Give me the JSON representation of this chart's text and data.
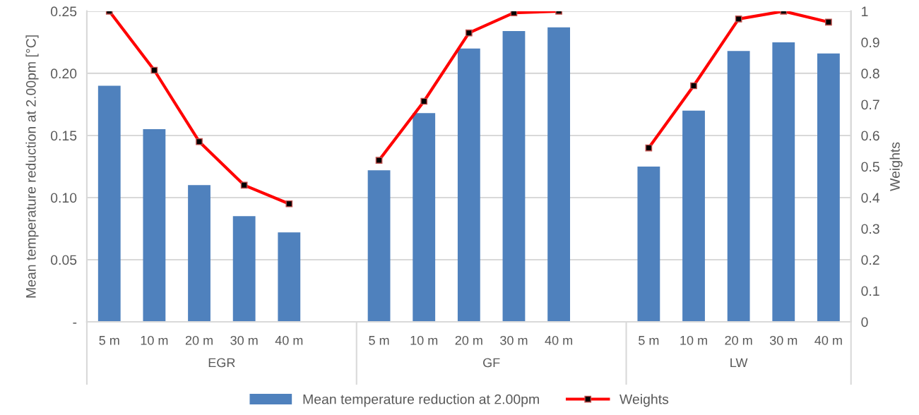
{
  "chart_data": {
    "type": "bar",
    "ylabel": "Mean temperature reduction at 2.00pm [°C]",
    "y2label": "Weights",
    "categories": [
      "5 m",
      "10 m",
      "20 m",
      "30 m",
      "40 m",
      null,
      "5 m",
      "10 m",
      "20 m",
      "30 m",
      "40 m",
      null,
      "5 m",
      "10 m",
      "20 m",
      "30 m",
      "40 m"
    ],
    "series": [
      {
        "name": "Mean temperature reduction at 2.00pm",
        "color": "#4f81bd",
        "values": [
          0.19,
          0.155,
          0.11,
          0.085,
          0.072,
          null,
          0.122,
          0.168,
          0.22,
          0.234,
          0.237,
          null,
          0.125,
          0.17,
          0.218,
          0.225,
          0.216
        ]
      },
      {
        "name": "Weights",
        "type": "line",
        "axis": "y2",
        "color": "#ff0000",
        "marker": "square",
        "values": [
          1.0,
          0.81,
          0.58,
          0.44,
          0.38,
          null,
          0.52,
          0.71,
          0.93,
          0.995,
          1.0,
          null,
          0.56,
          0.76,
          0.975,
          1.0,
          0.965
        ]
      }
    ],
    "annotations": [
      "EGR",
      "GF",
      "LW"
    ],
    "ylim": [
      0,
      0.25
    ],
    "yticks": [
      {
        "value": 0,
        "label": "-"
      },
      0.05,
      {
        "value": 0.1,
        "label": "0.10"
      },
      0.15,
      {
        "value": 0.2,
        "label": "0.20"
      },
      0.25
    ],
    "y2lim": [
      0,
      1
    ],
    "y2ticks": [
      0,
      0.1,
      0.2,
      0.3,
      0.4,
      0.5,
      0.6,
      0.7,
      0.8,
      0.9,
      1
    ],
    "grid": "y",
    "legend": "bottom"
  }
}
